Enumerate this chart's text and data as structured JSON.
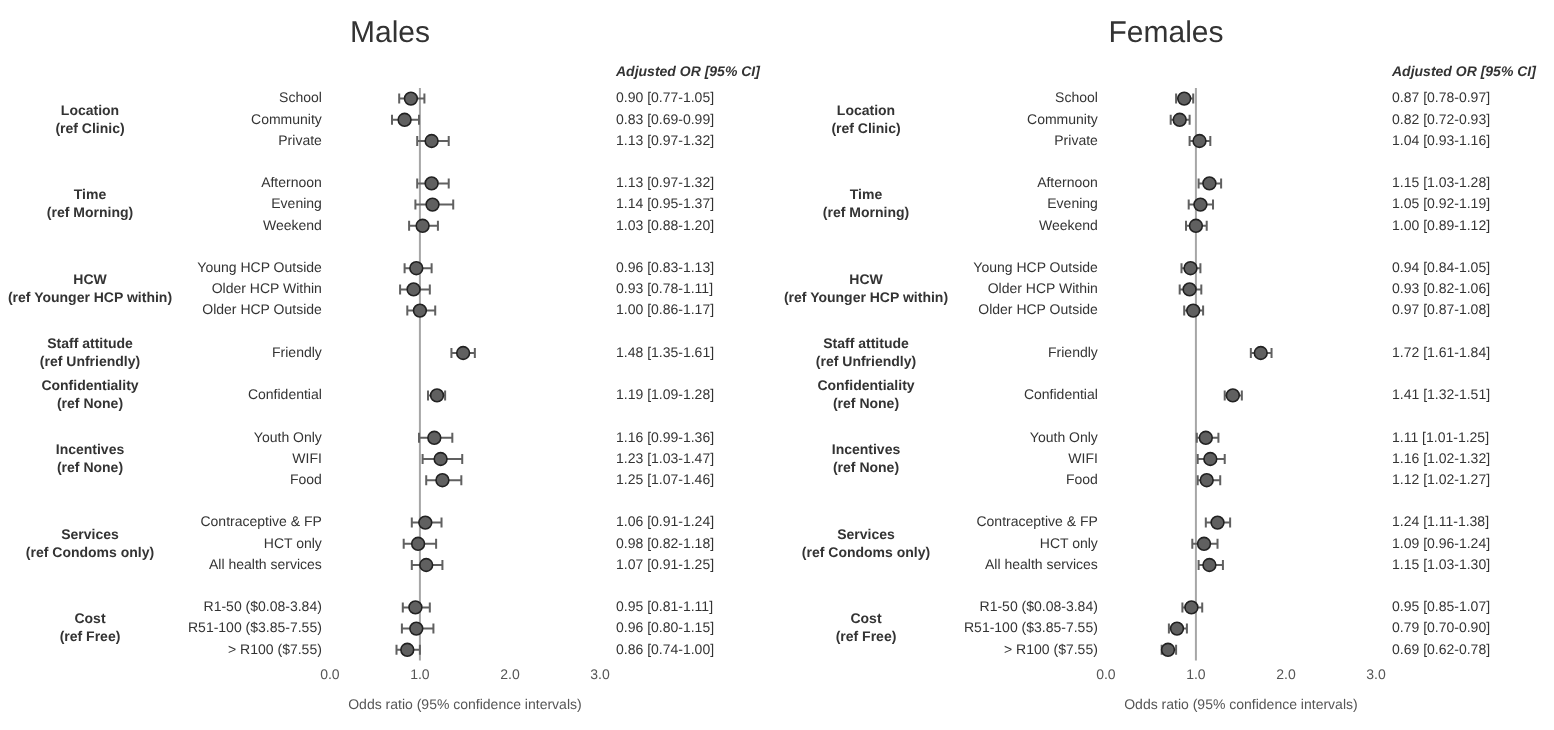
{
  "chart_data": [
    {
      "type": "scatter",
      "orientation": "horizontal",
      "title": "Males",
      "xlabel": "Odds ratio (95% confidence intervals)",
      "color": "#606060",
      "marker": "circle",
      "xlim": [
        0,
        3
      ],
      "xticks": [
        {
          "value": 0,
          "label": "0.0"
        },
        {
          "value": 1,
          "label": "1.0"
        },
        {
          "value": 2,
          "label": "2.0"
        },
        {
          "value": 3,
          "label": "3.0"
        }
      ],
      "ref_lines": [
        {
          "axis": "x",
          "value": 1,
          "color": "#a6a6a6"
        }
      ],
      "categories": [
        "School",
        "Community",
        "Private",
        null,
        "Afternoon",
        "Evening",
        "Weekend",
        null,
        "Young HCP Outside",
        "Older HCP Within",
        "Older HCP Outside",
        null,
        "Friendly",
        null,
        "Confidential",
        null,
        "Youth Only",
        "WIFI",
        "Food",
        null,
        "Contraceptive & FP",
        "HCT only",
        "All health services",
        null,
        "R1-50 ($0.08-3.84)",
        "R51-100 ($3.85-7.55)",
        "> R100 ($7.55)"
      ],
      "values": [
        0.9,
        0.83,
        1.13,
        null,
        1.13,
        1.14,
        1.03,
        null,
        0.96,
        0.93,
        1.0,
        null,
        1.48,
        null,
        1.19,
        null,
        1.16,
        1.23,
        1.25,
        null,
        1.06,
        0.98,
        1.07,
        null,
        0.95,
        0.96,
        0.86
      ],
      "errors": [
        [
          0.77,
          1.05
        ],
        [
          0.69,
          0.99
        ],
        [
          0.97,
          1.32
        ],
        null,
        [
          0.97,
          1.32
        ],
        [
          0.95,
          1.37
        ],
        [
          0.88,
          1.2
        ],
        null,
        [
          0.83,
          1.13
        ],
        [
          0.78,
          1.11
        ],
        [
          0.86,
          1.17
        ],
        null,
        [
          1.35,
          1.61
        ],
        null,
        [
          1.09,
          1.28
        ],
        null,
        [
          0.99,
          1.36
        ],
        [
          1.03,
          1.47
        ],
        [
          1.07,
          1.46
        ],
        null,
        [
          0.91,
          1.24
        ],
        [
          0.82,
          1.18
        ],
        [
          0.91,
          1.25
        ],
        null,
        [
          0.81,
          1.11
        ],
        [
          0.8,
          1.15
        ],
        [
          0.74,
          1.0
        ]
      ],
      "value_labels": [
        "0.90 [0.77-1.05]",
        "0.83 [0.69-0.99]",
        "1.13 [0.97-1.32]",
        null,
        "1.13 [0.97-1.32]",
        "1.14 [0.95-1.37]",
        "1.03 [0.88-1.20]",
        null,
        "0.96 [0.83-1.13]",
        "0.93 [0.78-1.11]",
        "1.00 [0.86-1.17]",
        null,
        "1.48 [1.35-1.61]",
        null,
        "1.19 [1.09-1.28]",
        null,
        "1.16 [0.99-1.36]",
        "1.23 [1.03-1.47]",
        "1.25 [1.07-1.46]",
        null,
        "1.06 [0.91-1.24]",
        "0.98 [0.82-1.18]",
        "1.07 [0.91-1.25]",
        null,
        "0.95 [0.81-1.11]",
        "0.96 [0.80-1.15]",
        "0.86 [0.74-1.00]"
      ],
      "annotations": [
        "Adjusted OR [95% CI]",
        "Location\n(ref Clinic)",
        "Time\n(ref Morning)",
        "HCW\n(ref Younger HCP within)",
        "Staff attitude\n(ref Unfriendly)",
        "Confidentiality\n(ref None)",
        "Incentives\n(ref None)",
        "Services\n(ref Condoms only)",
        "Cost\n(ref Free)"
      ]
    },
    {
      "type": "scatter",
      "orientation": "horizontal",
      "title": "Females",
      "xlabel": "Odds ratio (95% confidence intervals)",
      "color": "#606060",
      "marker": "circle",
      "xlim": [
        0,
        3
      ],
      "xticks": [
        {
          "value": 0,
          "label": "0.0"
        },
        {
          "value": 1,
          "label": "1.0"
        },
        {
          "value": 2,
          "label": "2.0"
        },
        {
          "value": 3,
          "label": "3.0"
        }
      ],
      "ref_lines": [
        {
          "axis": "x",
          "value": 1,
          "color": "#a6a6a6"
        }
      ],
      "categories": [
        "School",
        "Community",
        "Private",
        null,
        "Afternoon",
        "Evening",
        "Weekend",
        null,
        "Young HCP Outside",
        "Older HCP Within",
        "Older HCP Outside",
        null,
        "Friendly",
        null,
        "Confidential",
        null,
        "Youth Only",
        "WIFI",
        "Food",
        null,
        "Contraceptive & FP",
        "HCT only",
        "All health services",
        null,
        "R1-50 ($0.08-3.84)",
        "R51-100 ($3.85-7.55)",
        "> R100 ($7.55)"
      ],
      "values": [
        0.87,
        0.82,
        1.04,
        null,
        1.15,
        1.05,
        1.0,
        null,
        0.94,
        0.93,
        0.97,
        null,
        1.72,
        null,
        1.41,
        null,
        1.11,
        1.16,
        1.12,
        null,
        1.24,
        1.09,
        1.15,
        null,
        0.95,
        0.79,
        0.69
      ],
      "errors": [
        [
          0.78,
          0.97
        ],
        [
          0.72,
          0.93
        ],
        [
          0.93,
          1.16
        ],
        null,
        [
          1.03,
          1.28
        ],
        [
          0.92,
          1.19
        ],
        [
          0.89,
          1.12
        ],
        null,
        [
          0.84,
          1.05
        ],
        [
          0.82,
          1.06
        ],
        [
          0.87,
          1.08
        ],
        null,
        [
          1.61,
          1.84
        ],
        null,
        [
          1.32,
          1.51
        ],
        null,
        [
          1.01,
          1.25
        ],
        [
          1.02,
          1.32
        ],
        [
          1.02,
          1.27
        ],
        null,
        [
          1.11,
          1.38
        ],
        [
          0.96,
          1.24
        ],
        [
          1.03,
          1.3
        ],
        null,
        [
          0.85,
          1.07
        ],
        [
          0.7,
          0.9
        ],
        [
          0.62,
          0.78
        ]
      ],
      "value_labels": [
        "0.87 [0.78-0.97]",
        "0.82 [0.72-0.93]",
        "1.04 [0.93-1.16]",
        null,
        "1.15 [1.03-1.28]",
        "1.05 [0.92-1.19]",
        "1.00 [0.89-1.12]",
        null,
        "0.94 [0.84-1.05]",
        "0.93 [0.82-1.06]",
        "0.97 [0.87-1.08]",
        null,
        "1.72 [1.61-1.84]",
        null,
        "1.41 [1.32-1.51]",
        null,
        "1.11 [1.01-1.25]",
        "1.16 [1.02-1.32]",
        "1.12 [1.02-1.27]",
        null,
        "1.24 [1.11-1.38]",
        "1.09 [0.96-1.24]",
        "1.15 [1.03-1.30]",
        null,
        "0.95 [0.85-1.07]",
        "0.79 [0.70-0.90]",
        "0.69 [0.62-0.78]"
      ],
      "annotations": [
        "Adjusted OR [95% CI]",
        "Location\n(ref Clinic)",
        "Time\n(ref Morning)",
        "HCW\n(ref Younger HCP within)",
        "Staff attitude\n(ref Unfriendly)",
        "Confidentiality\n(ref None)",
        "Incentives\n(ref None)",
        "Services\n(ref Condoms only)",
        "Cost\n(ref Free)"
      ]
    }
  ]
}
